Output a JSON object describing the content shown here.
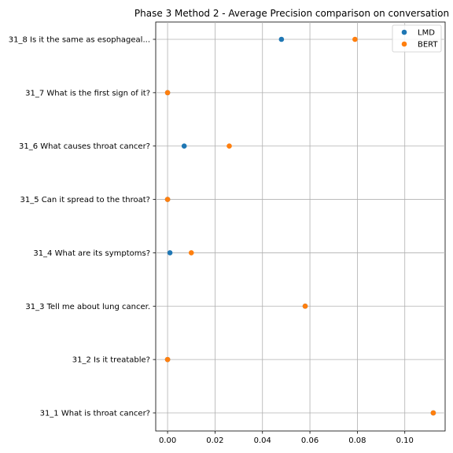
{
  "chart_data": {
    "type": "scatter",
    "title": "Phase 3 Method 2 - Average Precision comparison on conversation",
    "xlabel": "",
    "ylabel": "",
    "xlim": [
      -0.005,
      0.117
    ],
    "x_ticks": [
      0.0,
      0.02,
      0.04,
      0.06,
      0.08,
      0.1
    ],
    "x_tick_labels": [
      "0.00",
      "0.02",
      "0.04",
      "0.06",
      "0.08",
      "0.10"
    ],
    "categories": [
      "31_1 What is throat cancer?",
      "31_2 Is it treatable?",
      "31_3 Tell me about lung cancer.",
      "31_4 What are its symptoms?",
      "31_5 Can it spread to the throat?",
      "31_6 What causes throat cancer?",
      "31_7 What is the first sign of it?",
      "31_8 Is it the same as esophageal..."
    ],
    "series": [
      {
        "name": "LMD",
        "color": "#1f77b4",
        "values": [
          0.112,
          0.0,
          0.058,
          0.001,
          0.0,
          0.007,
          0.0,
          0.048
        ]
      },
      {
        "name": "BERT",
        "color": "#ff7f0e",
        "values": [
          0.112,
          0.0,
          0.058,
          0.01,
          0.0,
          0.026,
          0.0,
          0.079
        ]
      }
    ],
    "grid": true,
    "legend_position": "top-right"
  }
}
